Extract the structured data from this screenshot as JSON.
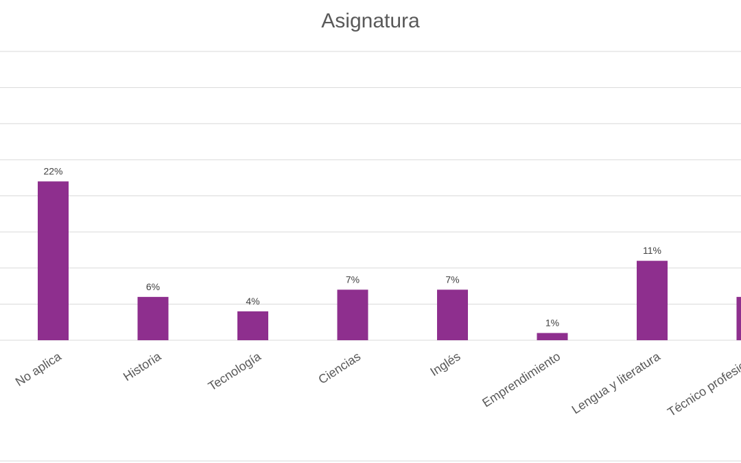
{
  "chart_data": {
    "type": "bar",
    "title": "Asignatura",
    "xlabel": "",
    "ylabel": "",
    "categories": [
      "No aplica",
      "Historia",
      "Tecnología",
      "Ciencias",
      "Inglés",
      "Emprendimiento",
      "Lengua y literatura",
      "Técnico profesional"
    ],
    "values": [
      22,
      6,
      4,
      7,
      7,
      1,
      11,
      6
    ],
    "data_labels": [
      "22%",
      "6%",
      "4%",
      "7%",
      "7%",
      "1%",
      "11%",
      ""
    ],
    "ylim": [
      0,
      40
    ],
    "grid": true,
    "legend": "none",
    "bar_color": "#8e2f8e"
  }
}
